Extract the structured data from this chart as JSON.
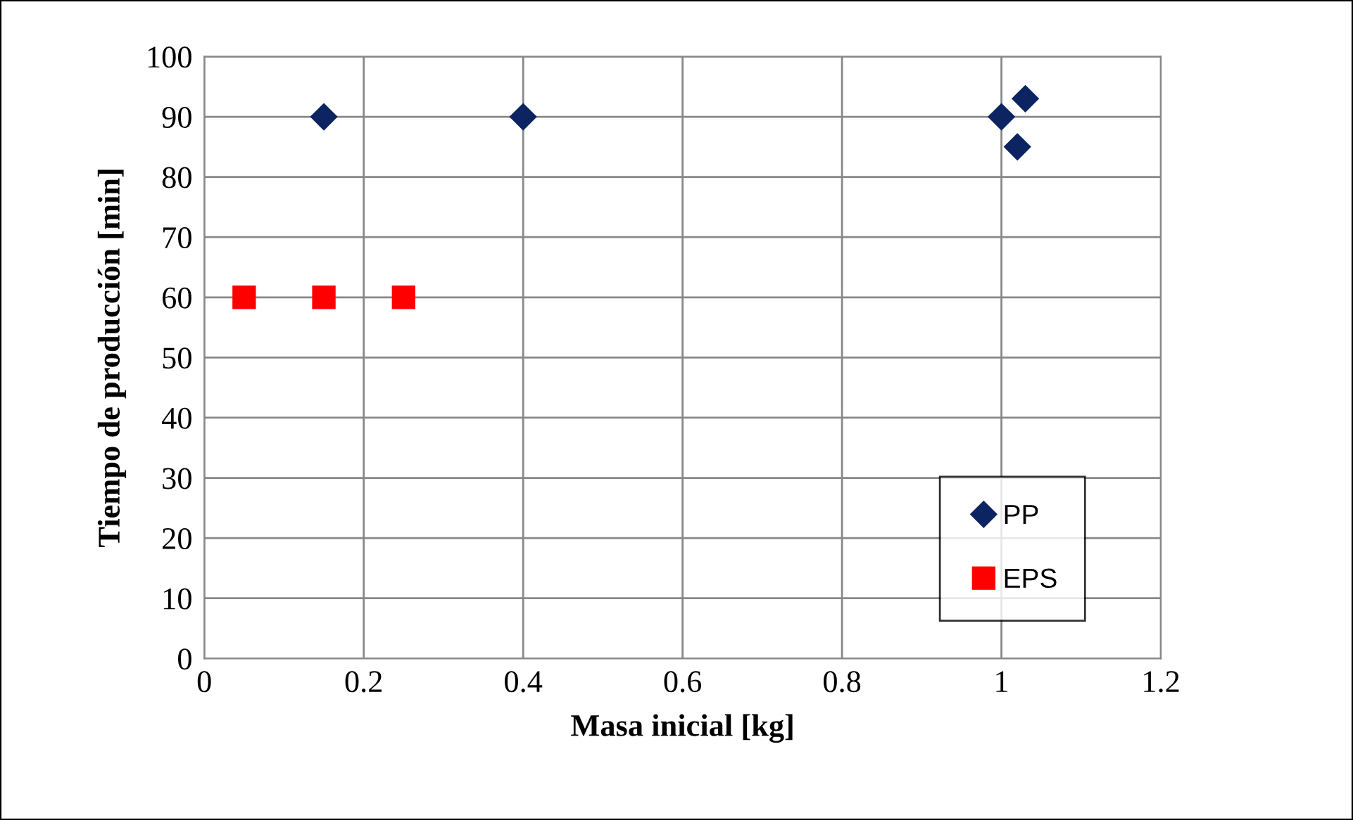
{
  "chart_data": {
    "type": "scatter",
    "xlabel": "Masa inicial [kg]",
    "ylabel": "Tiempo de producción [min]",
    "series": [
      {
        "name": "PP",
        "color": "#0c2461",
        "marker": "diamond",
        "x": [
          0.15,
          0.4,
          1.0,
          1.03,
          1.02
        ],
        "values": [
          90,
          90,
          90,
          93,
          85
        ]
      },
      {
        "name": "EPS",
        "color": "#ff0000",
        "marker": "square",
        "x": [
          0.05,
          0.15,
          0.25
        ],
        "values": [
          60,
          60,
          60
        ]
      }
    ],
    "xlim": [
      0,
      1.2
    ],
    "xticks": [
      0,
      0.2,
      0.4,
      0.6,
      0.8,
      1,
      1.2
    ],
    "ylim": [
      0,
      100
    ],
    "yticks": [
      0,
      10,
      20,
      30,
      40,
      50,
      60,
      70,
      80,
      90,
      100
    ],
    "grid": true,
    "legend": "bottom right"
  }
}
